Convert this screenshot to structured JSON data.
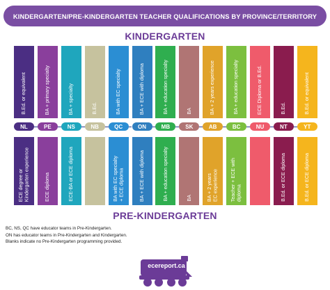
{
  "title": "KINDERGARTEN/PRE-KINDERGARTEN TEACHER QUALIFICATIONS BY PROVINCE/TERRITORY",
  "colors": {
    "accent": "#6b3b97",
    "title_bg": "#7a4ea3",
    "divider": "#2b3a8f",
    "text_dark": "#1b1b1b"
  },
  "kindergarten_heading": "KINDERGARTEN",
  "pre_kindergarten_heading": "PRE-KINDERGARTEN",
  "chart_data": {
    "type": "table",
    "columns": [
      {
        "code": "NL",
        "color": "#4b2e83",
        "kindergarten": "B.Ed. or equivalent",
        "pre_kindergarten": "ECE degree or\nKindergarten experience"
      },
      {
        "code": "PE",
        "color": "#8a3f9c",
        "kindergarten": "BA + primary specialty",
        "pre_kindergarten": "ECE diploma"
      },
      {
        "code": "NS",
        "color": "#1fa6bd",
        "kindergarten": "BA + specialty",
        "pre_kindergarten": "ECE-BA or ECE diploma"
      },
      {
        "code": "NB",
        "color": "#c6c29e",
        "kindergarten": "B.Ed.",
        "pre_kindergarten": ""
      },
      {
        "code": "QC",
        "color": "#2b8ed3",
        "kindergarten": "BA with EC specialty",
        "pre_kindergarten": "BA with EC specialty\n+ ECE diploma"
      },
      {
        "code": "ON",
        "color": "#2f7fbf",
        "kindergarten": "BA + ECE with diploma",
        "pre_kindergarten": "BA + ECE with diploma"
      },
      {
        "code": "MB",
        "color": "#2fae4f",
        "kindergarten": "BA + education specialty",
        "pre_kindergarten": "BA + education specialty"
      },
      {
        "code": "SK",
        "color": "#b07574",
        "kindergarten": "BA",
        "pre_kindergarten": "BA"
      },
      {
        "code": "AB",
        "color": "#e0a32a",
        "kindergarten": "BA + 2 years experience",
        "pre_kindergarten": "BA + 2 years\nEC experience"
      },
      {
        "code": "BC",
        "color": "#7cbf3f",
        "kindergarten": "BA + education specialty",
        "pre_kindergarten": "Teacher + ECE with\ndiploma"
      },
      {
        "code": "NU",
        "color": "#ef5b6b",
        "kindergarten": "ECE Diploma or B.Ed.",
        "pre_kindergarten": ""
      },
      {
        "code": "NT",
        "color": "#8a1c4e",
        "kindergarten": "B.Ed.",
        "pre_kindergarten": "B.Ed. or ECE diploma"
      },
      {
        "code": "YT",
        "color": "#f5b51d",
        "kindergarten": "B.Ed. or equivalent",
        "pre_kindergarten": "B.Ed. or ECE diploma"
      }
    ]
  },
  "notes": [
    "BC, NS, QC have educator teams in Pre-Kindergarten.",
    "ON has educator teams in Pre-Kindergarten and Kindergarten.",
    "Blanks indicate no Pre-Kindergarten programming provided."
  ],
  "logo": {
    "text": "ecereport.ca",
    "color": "#6b3b97",
    "icon": "train-icon"
  }
}
